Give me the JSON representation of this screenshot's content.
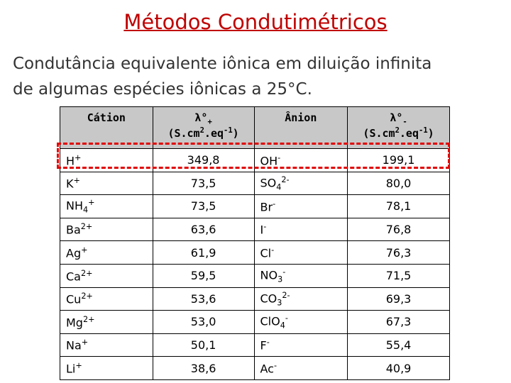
{
  "title": "Métodos Condutimétricos",
  "subtitle": [
    "Condutância equivalente iônica em diluição infinita",
    "de algumas espécies iônicas a 25°C."
  ],
  "table": {
    "header": [
      {
        "lines": [
          [
            {
              "text": "Cátion"
            }
          ]
        ]
      },
      {
        "lines": [
          [
            {
              "text": "λ°"
            },
            {
              "text": "+",
              "va": "sub"
            }
          ],
          [
            {
              "text": "(S.cm"
            },
            {
              "text": "2",
              "va": "sup"
            },
            {
              "text": ".eq"
            },
            {
              "text": "-1",
              "va": "sup"
            },
            {
              "text": ")"
            }
          ]
        ]
      },
      {
        "lines": [
          [
            {
              "text": "Ânion"
            }
          ]
        ]
      },
      {
        "lines": [
          [
            {
              "text": "λ°"
            },
            {
              "text": "-",
              "va": "sub"
            }
          ],
          [
            {
              "text": "(S.cm"
            },
            {
              "text": "2",
              "va": "sup"
            },
            {
              "text": ".eq"
            },
            {
              "text": "-1",
              "va": "sup"
            },
            {
              "text": ")"
            }
          ]
        ]
      }
    ],
    "rows": [
      {
        "cation": [
          {
            "text": "H"
          },
          {
            "text": "+",
            "va": "sup"
          }
        ],
        "lambda_plus": "349,8",
        "anion": [
          {
            "text": "OH"
          },
          {
            "text": "-",
            "va": "sup"
          }
        ],
        "lambda_minus": "199,1"
      },
      {
        "cation": [
          {
            "text": "K"
          },
          {
            "text": "+",
            "va": "sup"
          }
        ],
        "lambda_plus": "73,5",
        "anion": [
          {
            "text": "SO"
          },
          {
            "text": "4",
            "va": "sub"
          },
          {
            "text": "2-",
            "va": "sup"
          }
        ],
        "lambda_minus": "80,0"
      },
      {
        "cation": [
          {
            "text": "NH"
          },
          {
            "text": "4",
            "va": "sub"
          },
          {
            "text": "+",
            "va": "sup"
          }
        ],
        "lambda_plus": "73,5",
        "anion": [
          {
            "text": "Br"
          },
          {
            "text": "-",
            "va": "sup"
          }
        ],
        "lambda_minus": "78,1"
      },
      {
        "cation": [
          {
            "text": "Ba"
          },
          {
            "text": "2+",
            "va": "sup"
          }
        ],
        "lambda_plus": "63,6",
        "anion": [
          {
            "text": "I"
          },
          {
            "text": "-",
            "va": "sup"
          }
        ],
        "lambda_minus": "76,8"
      },
      {
        "cation": [
          {
            "text": "Ag"
          },
          {
            "text": "+",
            "va": "sup"
          }
        ],
        "lambda_plus": "61,9",
        "anion": [
          {
            "text": "Cl"
          },
          {
            "text": "-",
            "va": "sup"
          }
        ],
        "lambda_minus": "76,3"
      },
      {
        "cation": [
          {
            "text": "Ca"
          },
          {
            "text": "2+",
            "va": "sup"
          }
        ],
        "lambda_plus": "59,5",
        "anion": [
          {
            "text": "NO"
          },
          {
            "text": "3",
            "va": "sub"
          },
          {
            "text": "-",
            "va": "sup"
          }
        ],
        "lambda_minus": "71,5"
      },
      {
        "cation": [
          {
            "text": "Cu"
          },
          {
            "text": "2+",
            "va": "sup"
          }
        ],
        "lambda_plus": "53,6",
        "anion": [
          {
            "text": "CO"
          },
          {
            "text": "3",
            "va": "sub"
          },
          {
            "text": "2-",
            "va": "sup"
          }
        ],
        "lambda_minus": "69,3"
      },
      {
        "cation": [
          {
            "text": "Mg"
          },
          {
            "text": "2+",
            "va": "sup"
          }
        ],
        "lambda_plus": "53,0",
        "anion": [
          {
            "text": "ClO"
          },
          {
            "text": "4",
            "va": "sub"
          },
          {
            "text": "-",
            "va": "sup"
          }
        ],
        "lambda_minus": "67,3"
      },
      {
        "cation": [
          {
            "text": "Na"
          },
          {
            "text": "+",
            "va": "sup"
          }
        ],
        "lambda_plus": "50,1",
        "anion": [
          {
            "text": "F"
          },
          {
            "text": "-",
            "va": "sup"
          }
        ],
        "lambda_minus": "55,4"
      },
      {
        "cation": [
          {
            "text": "Li"
          },
          {
            "text": "+",
            "va": "sup"
          }
        ],
        "lambda_plus": "38,6",
        "anion": [
          {
            "text": "Ac"
          },
          {
            "text": "-",
            "va": "sup"
          }
        ],
        "lambda_minus": "40,9"
      }
    ]
  }
}
